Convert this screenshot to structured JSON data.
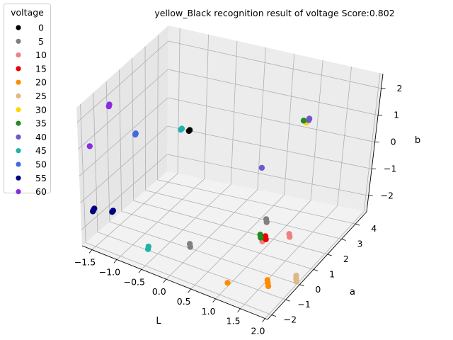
{
  "chart_data": {
    "type": "scatter",
    "title": "yellow_Black recognition result of voltage Score:0.802",
    "xlabel": "L",
    "ylabel": "a",
    "zlabel": "b",
    "xlim": [
      -1.7,
      2.05
    ],
    "ylim": [
      -2.3,
      4.8
    ],
    "zlim": [
      -2.6,
      2.55
    ],
    "xticks": [
      "−1.5",
      "−1.0",
      "−0.5",
      "0.0",
      "0.5",
      "1.0",
      "1.5",
      "2.0"
    ],
    "yticks": [
      "−2",
      "−1",
      "0",
      "1",
      "2",
      "3",
      "4"
    ],
    "zticks": [
      "−2",
      "−1",
      "0",
      "1",
      "2"
    ],
    "grid": true,
    "legend_title": "voltage",
    "legend_placement": "upper-left outside",
    "series": [
      {
        "name": "0",
        "color": "#000000",
        "points": [
          [
            -0.05,
            -0.3,
            1.78
          ],
          [
            -0.06,
            -0.32,
            1.75
          ]
        ]
      },
      {
        "name": "5",
        "color": "#808080",
        "points": [
          [
            0.35,
            -1.8,
            -1.35
          ],
          [
            0.36,
            -1.8,
            -1.45
          ],
          [
            1.2,
            0.6,
            -1.1
          ],
          [
            1.21,
            0.6,
            -1.2
          ]
        ]
      },
      {
        "name": "10",
        "color": "#f08080",
        "points": [
          [
            1.25,
            0.1,
            -1.48
          ],
          [
            1.27,
            0.1,
            -1.6
          ],
          [
            1.6,
            0.8,
            -1.5
          ],
          [
            1.61,
            0.8,
            -1.6
          ]
        ]
      },
      {
        "name": "15",
        "color": "#ee0000",
        "points": [
          [
            1.3,
            0.2,
            -1.45
          ],
          [
            1.31,
            0.2,
            -1.55
          ]
        ]
      },
      {
        "name": "20",
        "color": "#ff8c00",
        "points": [
          [
            1.05,
            -1.6,
            -2.35
          ],
          [
            1.6,
            -0.7,
            -2.35
          ],
          [
            1.61,
            -0.7,
            -2.45
          ],
          [
            1.62,
            -0.7,
            -2.55
          ]
        ]
      },
      {
        "name": "25",
        "color": "#deb887",
        "points": [
          [
            1.95,
            0.1,
            -2.4
          ],
          [
            1.95,
            0.1,
            -2.5
          ],
          [
            1.96,
            0.1,
            -2.6
          ]
        ]
      },
      {
        "name": "30",
        "color": "#ffd700",
        "points": [
          [
            1.02,
            3.8,
            0.8
          ],
          [
            1.04,
            3.8,
            0.75
          ]
        ]
      },
      {
        "name": "35",
        "color": "#228b22",
        "points": [
          [
            1.2,
            0.2,
            -1.45
          ],
          [
            1.21,
            0.2,
            -1.55
          ],
          [
            0.99,
            3.8,
            0.8
          ]
        ]
      },
      {
        "name": "40",
        "color": "#6a5acd",
        "points": [
          [
            0.76,
            1.85,
            -0.1
          ],
          [
            1.09,
            3.8,
            0.92
          ],
          [
            1.08,
            3.8,
            0.86
          ]
        ]
      },
      {
        "name": "45",
        "color": "#20b2aa",
        "points": [
          [
            -0.2,
            -0.3,
            1.75
          ],
          [
            -0.22,
            -0.3,
            1.7
          ],
          [
            -0.4,
            -2.1,
            -1.8
          ],
          [
            -0.41,
            -2.1,
            -1.9
          ]
        ]
      },
      {
        "name": "50",
        "color": "#4169e1",
        "points": [
          [
            -0.9,
            -1.0,
            1.5
          ],
          [
            -0.91,
            -1.0,
            1.45
          ]
        ]
      },
      {
        "name": "55",
        "color": "#000080",
        "points": [
          [
            -1.5,
            -2.0,
            -1.2
          ],
          [
            -1.52,
            -2.0,
            -1.27
          ],
          [
            -1.53,
            -2.0,
            -1.32
          ],
          [
            -1.2,
            -1.7,
            -1.2
          ],
          [
            -1.22,
            -1.7,
            -1.26
          ]
        ]
      },
      {
        "name": "60",
        "color": "#8a2be2",
        "points": [
          [
            -1.5,
            -0.6,
            2.05
          ],
          [
            -1.51,
            -0.6,
            1.98
          ],
          [
            -1.65,
            -1.6,
            0.85
          ]
        ]
      }
    ]
  }
}
